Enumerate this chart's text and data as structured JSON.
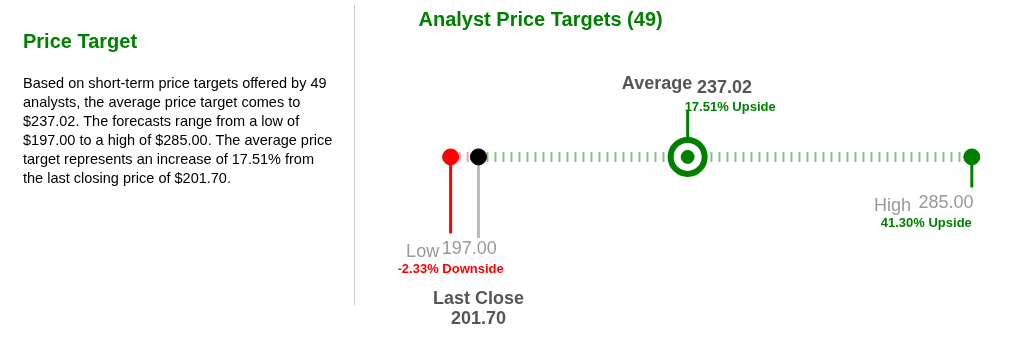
{
  "chart_data": [
    {
      "type": "other",
      "title": "Price Target",
      "annotations": [
        "Based on short-term price targets offered by 49 analysts, the average price target comes to $237.02. The forecasts range from a low of $197.00 to a high of $285.00. The average price target represents an increase of 17.51% from the last closing price of $201.70."
      ]
    },
    {
      "type": "other",
      "title": "Analyst Price Targets (49)",
      "categories": [
        "Low",
        "Last Close",
        "Average",
        "High"
      ],
      "values": [
        197.0,
        201.7,
        237.02,
        285.0
      ],
      "value_labels": [
        "197.00",
        "201.70",
        "237.02",
        "285.00"
      ],
      "colors": [
        "#ff0000",
        "#000000",
        "#008000",
        "#008000"
      ],
      "annotations": [
        "-2.33% Downside",
        "17.51% Upside",
        "41.30% Upside"
      ]
    }
  ]
}
